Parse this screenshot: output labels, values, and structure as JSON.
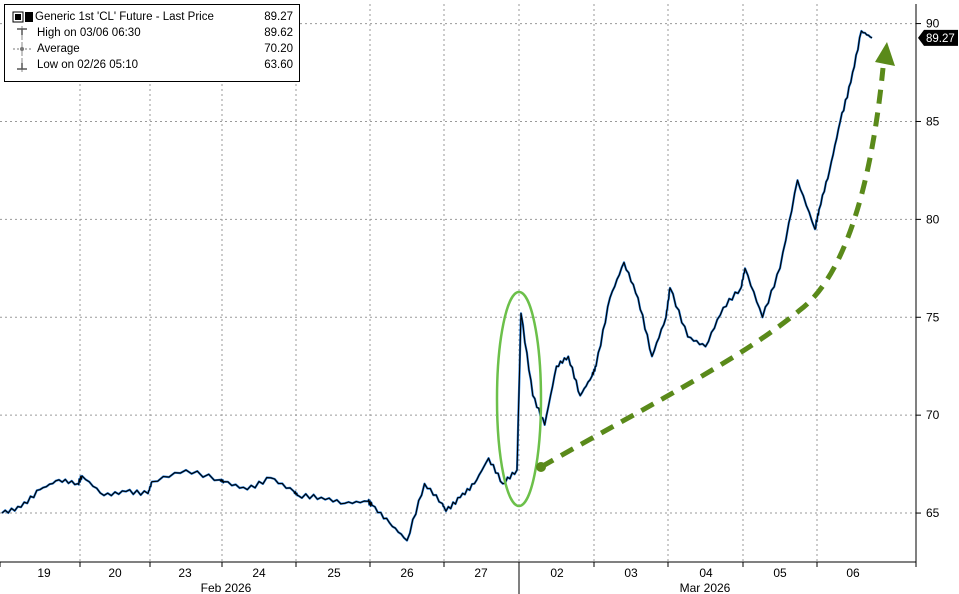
{
  "legend": {
    "series": {
      "name": "Generic 1st 'CL' Future - Last Price",
      "value": "89.27"
    },
    "high": {
      "name": "High on 03/06 06:30",
      "value": "89.62"
    },
    "average": {
      "name": "Average",
      "value": "70.20"
    },
    "low": {
      "name": "Low on 02/26 05:10",
      "value": "63.60"
    }
  },
  "colors": {
    "price_line": "#000000",
    "price_highlight": "#1f77d4",
    "annotation": "#5a8a1a",
    "ellipse": "#6cc04a",
    "grid": "#9a9a9a"
  },
  "chart_data": {
    "type": "line",
    "title": "",
    "xlabel": "",
    "ylabel": "",
    "ylim": [
      62.5,
      91
    ],
    "y_ticks": [
      "65",
      "70",
      "75",
      "80",
      "85",
      "90"
    ],
    "x_tick_labels": [
      "19",
      "20",
      "23",
      "24",
      "25",
      "26",
      "27",
      "02",
      "03",
      "04",
      "05",
      "06"
    ],
    "x_group_labels": [
      "Feb 2026",
      "Mar 2026"
    ],
    "last_value": "89.27",
    "grid": true,
    "legend_position": "top-left",
    "series": [
      {
        "name": "Generic 1st 'CL' Future - Last Price",
        "points": [
          [
            "19",
            65.0
          ],
          [
            "19",
            65.3
          ],
          [
            "19",
            66.2
          ],
          [
            "19",
            66.7
          ],
          [
            "19",
            66.5
          ],
          [
            "20",
            66.9
          ],
          [
            "20",
            65.9
          ],
          [
            "20",
            66.1
          ],
          [
            "20",
            66.0
          ],
          [
            "23",
            66.6
          ],
          [
            "23",
            67.2
          ],
          [
            "23",
            66.7
          ],
          [
            "24",
            66.6
          ],
          [
            "24",
            66.2
          ],
          [
            "24",
            66.8
          ],
          [
            "24",
            66.1
          ],
          [
            "25",
            65.9
          ],
          [
            "25",
            65.8
          ],
          [
            "25",
            65.5
          ],
          [
            "25",
            65.6
          ],
          [
            "26",
            65.4
          ],
          [
            "26",
            64.5
          ],
          [
            "26",
            63.6
          ],
          [
            "26",
            66.5
          ],
          [
            "26",
            65.5
          ],
          [
            "27",
            65.1
          ],
          [
            "27",
            65.8
          ],
          [
            "27",
            66.5
          ],
          [
            "27",
            67.8
          ],
          [
            "27",
            66.5
          ],
          [
            "27",
            67.2
          ],
          [
            "02",
            75.2
          ],
          [
            "02",
            71.0
          ],
          [
            "02",
            69.5
          ],
          [
            "02",
            72.5
          ],
          [
            "02",
            73.0
          ],
          [
            "02",
            71.0
          ],
          [
            "02",
            72.0
          ],
          [
            "03",
            72.5
          ],
          [
            "03",
            76.0
          ],
          [
            "03",
            77.8
          ],
          [
            "03",
            76.0
          ],
          [
            "03",
            73.0
          ],
          [
            "03",
            75.0
          ],
          [
            "04",
            76.5
          ],
          [
            "04",
            74.0
          ],
          [
            "04",
            73.5
          ],
          [
            "04",
            75.5
          ],
          [
            "04",
            76.5
          ],
          [
            "05",
            77.5
          ],
          [
            "05",
            75.0
          ],
          [
            "05",
            77.5
          ],
          [
            "05",
            82.0
          ],
          [
            "05",
            79.5
          ],
          [
            "06",
            80.5
          ],
          [
            "06",
            82.5
          ],
          [
            "06",
            85.0
          ],
          [
            "06",
            87.0
          ],
          [
            "06",
            89.62
          ],
          [
            "06",
            89.27
          ]
        ]
      }
    ],
    "annotations": [
      "green ellipse around the 02 Mar opening spike",
      "green dashed arrow curving up from ~67 to ~89.5"
    ]
  }
}
